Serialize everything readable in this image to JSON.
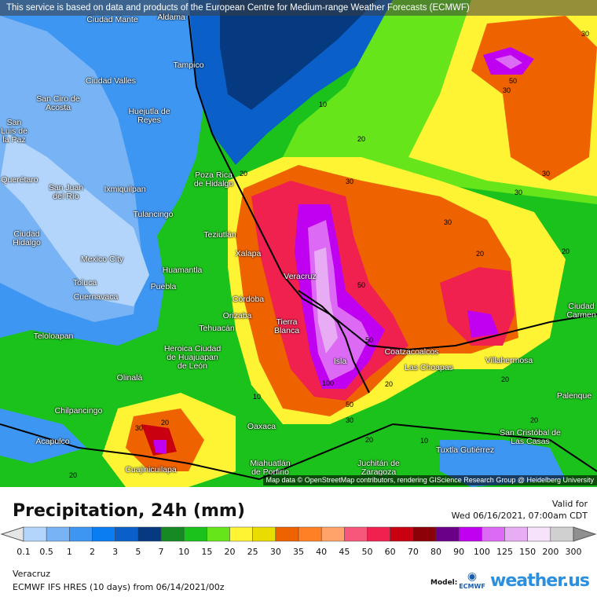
{
  "banner": "This service is based on data and products of the European Centre for Medium-range Weather Forecasts (ECMWF)",
  "attribution": "Map data © OpenStreetMap contributors, rendering GIScience Research Group @ Heidelberg University",
  "title": "Precipitation, 24h (mm)",
  "valid_label": "Valid for",
  "valid_time": "Wed 06/16/2021, 07:00am CDT",
  "region": "Veracruz",
  "model_run": "ECMWF IFS HRES (10 days) from  06/14/2021/00z",
  "model_label": "Model:",
  "model_logo": "ECMWF",
  "brand": "weather.us",
  "legend": {
    "ticks": [
      "0.1",
      "0.5",
      "1",
      "2",
      "3",
      "5",
      "7",
      "10",
      "15",
      "20",
      "25",
      "30",
      "35",
      "40",
      "45",
      "50",
      "60",
      "70",
      "80",
      "90",
      "100",
      "125",
      "150",
      "200",
      "300"
    ],
    "colors": [
      "#b3d5fb",
      "#78b4f5",
      "#3e96f3",
      "#0a7df2",
      "#0a60c8",
      "#063a80",
      "#158a22",
      "#1bc21b",
      "#66e61a",
      "#fff433",
      "#e8dc00",
      "#ee6200",
      "#ff8025",
      "#ffa36a",
      "#f5587a",
      "#f0204f",
      "#c80010",
      "#8c0008",
      "#6a0088",
      "#c000f0",
      "#dc6af5",
      "#e8acf5",
      "#f6e2fa",
      "#d0d0d0"
    ],
    "below_color": "#e6e6e6",
    "above_color": "#909090"
  },
  "cities": [
    "Ciudad Mante",
    "Aldama",
    "Tampico",
    "Ciudad Valles",
    "San Ciro de Acosta",
    "Huejutla de Reyes",
    "San Luis de la Paz",
    "Poza Rica de Hidalgo",
    "Querétaro",
    "San Juan del Río",
    "Ixmiquilpan",
    "Tulancingo",
    "Teziutlán",
    "Xalapa",
    "Ciudad Hidalgo",
    "Mexico City",
    "Huamantla",
    "Toluca",
    "Veracruz",
    "Cuernavaca",
    "Puebla",
    "Córdoba",
    "Orizaba",
    "Tierra Blanca",
    "Tehuacán",
    "Teloloapan",
    "Heroica Ciudad de Huajuapan de León",
    "Coatzacoalcos",
    "Las Choapas",
    "Villahermosa",
    "Isla",
    "Olinalá",
    "Chilpancingo",
    "Palenque",
    "Oaxaca",
    "San Cristóbal de Las Casas",
    "Acapulco",
    "Tuxtla Gutiérrez",
    "Cuajinicuilapa",
    "Miahuatlán de Porfirio",
    "Juchitán de Zaragoza",
    "Ciudad Carmen"
  ],
  "contours": [
    "30",
    "50",
    "30",
    "10",
    "20",
    "20",
    "30",
    "30",
    "30",
    "20",
    "20",
    "30",
    "50",
    "50",
    "100",
    "20",
    "50",
    "30",
    "20",
    "10",
    "20",
    "20",
    "30",
    "20",
    "10",
    "20"
  ]
}
